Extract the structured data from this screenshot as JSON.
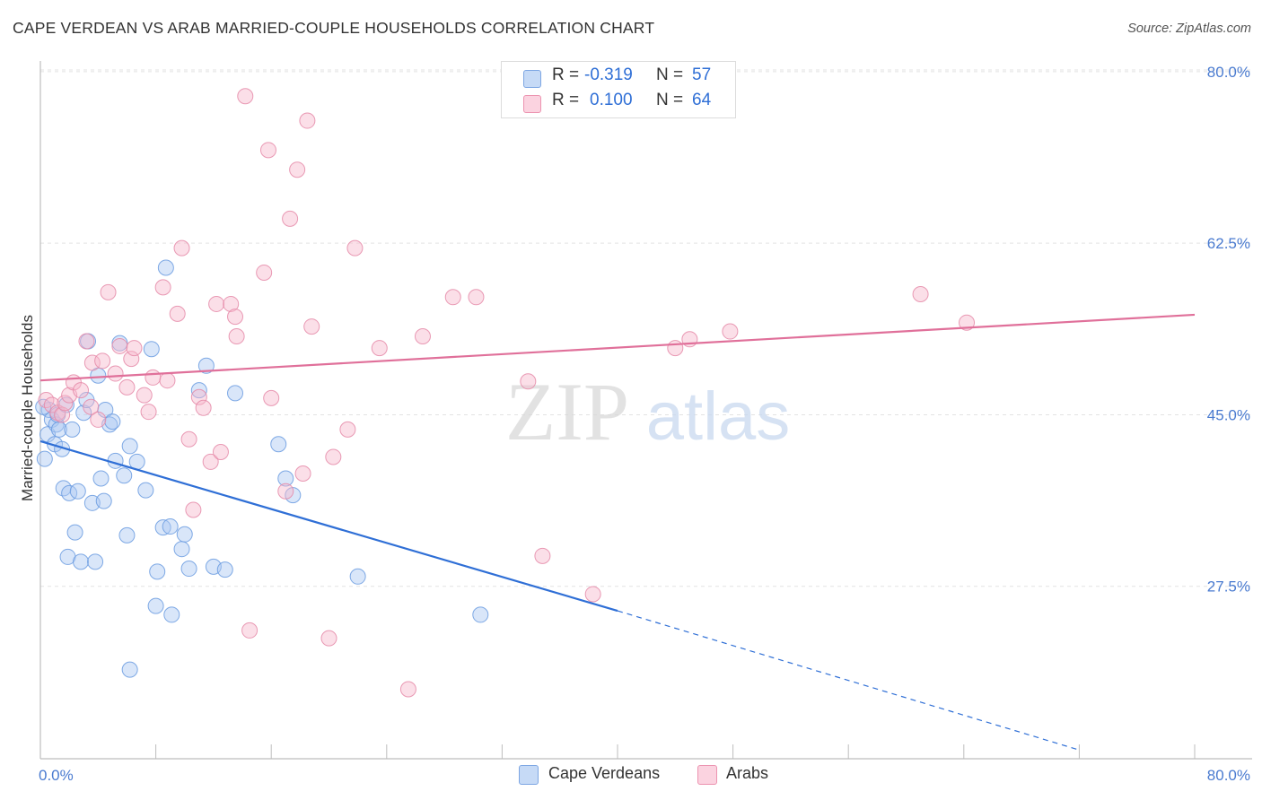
{
  "title": "CAPE VERDEAN VS ARAB MARRIED-COUPLE HOUSEHOLDS CORRELATION CHART",
  "source": "Source: ZipAtlas.com",
  "watermark": {
    "zip": "ZIP",
    "atlas": "atlas"
  },
  "legend": {
    "rows": [
      {
        "r_label": "R =",
        "r_value": "-0.319",
        "n_label": "N =",
        "n_value": "57",
        "color": "#aac8f2"
      },
      {
        "r_label": "R =",
        "r_value": "0.100",
        "n_label": "N =",
        "n_value": "64",
        "color": "#f7b8cc"
      }
    ]
  },
  "bottom_legend": {
    "items": [
      {
        "label": "Cape Verdeans",
        "color": "#aac8f2"
      },
      {
        "label": "Arabs",
        "color": "#f7b8cc"
      }
    ]
  },
  "chart_data": {
    "type": "scatter",
    "ylabel": "Married-couple Households",
    "xlim": [
      0,
      80
    ],
    "ylim": [
      10,
      82
    ],
    "x_tick_labels": [
      "0.0%",
      "80.0%"
    ],
    "y_ticks": [
      27.5,
      45.0,
      62.5,
      80.0
    ],
    "y_tick_labels": [
      "27.5%",
      "45.0%",
      "62.5%",
      "80.0%"
    ],
    "grid": true,
    "legend_placement": "top-center",
    "series": [
      {
        "name": "Cape Verdeans",
        "color": "#6a9be0",
        "fill": "#aac8f2",
        "trend": {
          "x0": 0,
          "y0": 42.3,
          "x1": 40,
          "y1": 25.0,
          "dash_x1": 72,
          "dash_y1": 10.8
        },
        "points": [
          [
            0.3,
            40.5
          ],
          [
            0.5,
            43.0
          ],
          [
            0.6,
            45.5
          ],
          [
            0.8,
            44.5
          ],
          [
            1.0,
            42.0
          ],
          [
            1.1,
            44.0
          ],
          [
            1.2,
            45.0
          ],
          [
            1.3,
            43.5
          ],
          [
            1.5,
            41.5
          ],
          [
            1.6,
            37.5
          ],
          [
            1.8,
            46.0
          ],
          [
            1.9,
            30.5
          ],
          [
            2.0,
            37.0
          ],
          [
            2.2,
            43.5
          ],
          [
            2.4,
            33.0
          ],
          [
            2.6,
            37.2
          ],
          [
            2.8,
            30.0
          ],
          [
            3.0,
            45.2
          ],
          [
            3.2,
            46.5
          ],
          [
            3.3,
            52.5
          ],
          [
            3.6,
            36.0
          ],
          [
            3.8,
            30.0
          ],
          [
            4.0,
            49.0
          ],
          [
            4.2,
            38.5
          ],
          [
            4.4,
            36.2
          ],
          [
            4.5,
            45.5
          ],
          [
            4.8,
            44.0
          ],
          [
            5.0,
            44.3
          ],
          [
            5.2,
            40.3
          ],
          [
            5.5,
            52.3
          ],
          [
            5.8,
            38.8
          ],
          [
            6.0,
            32.7
          ],
          [
            6.2,
            41.8
          ],
          [
            6.7,
            40.2
          ],
          [
            7.3,
            37.3
          ],
          [
            7.7,
            51.7
          ],
          [
            8.0,
            25.5
          ],
          [
            8.1,
            29.0
          ],
          [
            8.5,
            33.5
          ],
          [
            8.7,
            60.0
          ],
          [
            9.0,
            33.6
          ],
          [
            9.1,
            24.6
          ],
          [
            9.8,
            31.3
          ],
          [
            10.0,
            32.8
          ],
          [
            10.3,
            29.3
          ],
          [
            11.0,
            47.5
          ],
          [
            11.5,
            50.0
          ],
          [
            12.0,
            29.5
          ],
          [
            12.8,
            29.2
          ],
          [
            13.5,
            47.2
          ],
          [
            16.5,
            42.0
          ],
          [
            17.0,
            38.5
          ],
          [
            17.5,
            36.8
          ],
          [
            22.0,
            28.5
          ],
          [
            30.5,
            24.6
          ],
          [
            6.2,
            19.0
          ],
          [
            0.2,
            45.8
          ]
        ]
      },
      {
        "name": "Arabs",
        "color": "#e58aa8",
        "fill": "#f7b8cc",
        "trend": {
          "x0": 0,
          "y0": 48.5,
          "x1": 80,
          "y1": 55.2
        },
        "points": [
          [
            0.4,
            46.5
          ],
          [
            0.8,
            46.0
          ],
          [
            1.2,
            45.2
          ],
          [
            1.5,
            45.0
          ],
          [
            1.7,
            46.2
          ],
          [
            2.0,
            47.0
          ],
          [
            2.3,
            48.3
          ],
          [
            2.8,
            47.5
          ],
          [
            3.2,
            52.5
          ],
          [
            3.5,
            45.8
          ],
          [
            3.6,
            50.3
          ],
          [
            4.0,
            44.5
          ],
          [
            4.3,
            50.5
          ],
          [
            4.7,
            57.5
          ],
          [
            5.2,
            49.2
          ],
          [
            5.5,
            52.0
          ],
          [
            6.0,
            47.8
          ],
          [
            6.3,
            50.7
          ],
          [
            6.5,
            51.8
          ],
          [
            7.2,
            47.0
          ],
          [
            7.5,
            45.3
          ],
          [
            7.8,
            48.8
          ],
          [
            8.5,
            58.0
          ],
          [
            8.8,
            48.5
          ],
          [
            9.5,
            55.3
          ],
          [
            9.8,
            62.0
          ],
          [
            10.3,
            42.5
          ],
          [
            10.6,
            35.3
          ],
          [
            11.0,
            46.8
          ],
          [
            11.3,
            45.7
          ],
          [
            11.8,
            40.2
          ],
          [
            12.2,
            56.3
          ],
          [
            12.5,
            41.2
          ],
          [
            13.2,
            56.3
          ],
          [
            13.5,
            55.0
          ],
          [
            13.6,
            53.0
          ],
          [
            14.2,
            77.5
          ],
          [
            14.5,
            23.0
          ],
          [
            15.5,
            59.5
          ],
          [
            15.8,
            72.0
          ],
          [
            16.0,
            46.7
          ],
          [
            17.0,
            37.2
          ],
          [
            17.3,
            65.0
          ],
          [
            17.8,
            70.0
          ],
          [
            18.2,
            39.0
          ],
          [
            18.5,
            75.0
          ],
          [
            18.8,
            54.0
          ],
          [
            20.0,
            22.2
          ],
          [
            20.3,
            40.7
          ],
          [
            21.3,
            43.5
          ],
          [
            21.8,
            62.0
          ],
          [
            23.5,
            51.8
          ],
          [
            25.5,
            17.0
          ],
          [
            26.5,
            53.0
          ],
          [
            28.6,
            57.0
          ],
          [
            30.2,
            57.0
          ],
          [
            33.8,
            48.4
          ],
          [
            34.8,
            30.6
          ],
          [
            38.3,
            26.7
          ],
          [
            44.0,
            51.8
          ],
          [
            45.0,
            52.7
          ],
          [
            47.8,
            53.5
          ],
          [
            61.0,
            57.3
          ],
          [
            64.2,
            54.4
          ]
        ]
      }
    ]
  }
}
